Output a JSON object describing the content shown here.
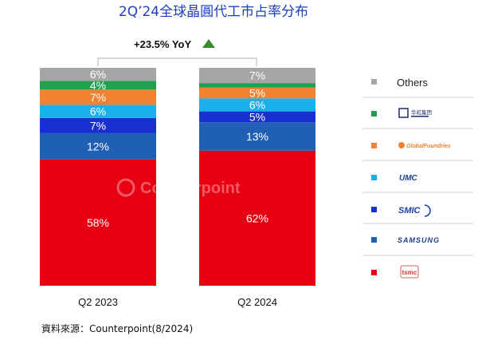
{
  "title": "2Q’24全球晶圓代工市占率分布",
  "yoy_label": "+23.5% YoY",
  "source": "資料來源：Counterpoint(8/2024)",
  "watermark": "Counterpoint",
  "colors": {
    "title": "#1f3fbf",
    "tsmc": "#e60012",
    "samsung": "#1f5fb4",
    "smic": "#1a2fcf",
    "umc": "#1ab0ee",
    "globalfoundries": "#f08232",
    "huahong": "#21a050",
    "others": "#a6a6a6",
    "yoy_arrow": "#3a8a2e"
  },
  "legend": [
    {
      "key": "others",
      "label": "Others",
      "icon": "others-text"
    },
    {
      "key": "huahong",
      "label": "华虹集团",
      "icon": "huahong-logo"
    },
    {
      "key": "globalfoundries",
      "label": "GlobalFoundries",
      "icon": "globalfoundries-logo"
    },
    {
      "key": "umc",
      "label": "UMC",
      "icon": "umc-logo"
    },
    {
      "key": "smic",
      "label": "SMIC",
      "icon": "smic-logo"
    },
    {
      "key": "samsung",
      "label": "SAMSUNG",
      "icon": "samsung-logo"
    },
    {
      "key": "tsmc",
      "label": "tsmc",
      "icon": "tsmc-logo"
    }
  ],
  "chart_data": {
    "type": "bar",
    "stacked": true,
    "normalized": true,
    "title": "2Q’24全球晶圓代工市占率分布",
    "categories": [
      "Q2 2023",
      "Q2 2024"
    ],
    "series": [
      {
        "name": "tsmc",
        "values": [
          58,
          62
        ],
        "labels": [
          "58%",
          "62%"
        ]
      },
      {
        "name": "SAMSUNG",
        "values": [
          12,
          13
        ],
        "labels": [
          "12%",
          "13%"
        ]
      },
      {
        "name": "SMIC",
        "values": [
          7,
          5
        ],
        "labels": [
          "7%",
          "5%"
        ]
      },
      {
        "name": "UMC",
        "values": [
          6,
          6
        ],
        "labels": [
          "6%",
          "6%"
        ]
      },
      {
        "name": "GlobalFoundries",
        "values": [
          7,
          5
        ],
        "labels": [
          "7%",
          "5%"
        ]
      },
      {
        "name": "华虹集团",
        "values": [
          4,
          2
        ],
        "labels": [
          "4%",
          ""
        ]
      },
      {
        "name": "Others",
        "values": [
          6,
          7
        ],
        "labels": [
          "6%",
          "7%"
        ]
      }
    ],
    "annotation": "+23.5% YoY",
    "legend_position": "right",
    "ylim": [
      0,
      100
    ]
  }
}
